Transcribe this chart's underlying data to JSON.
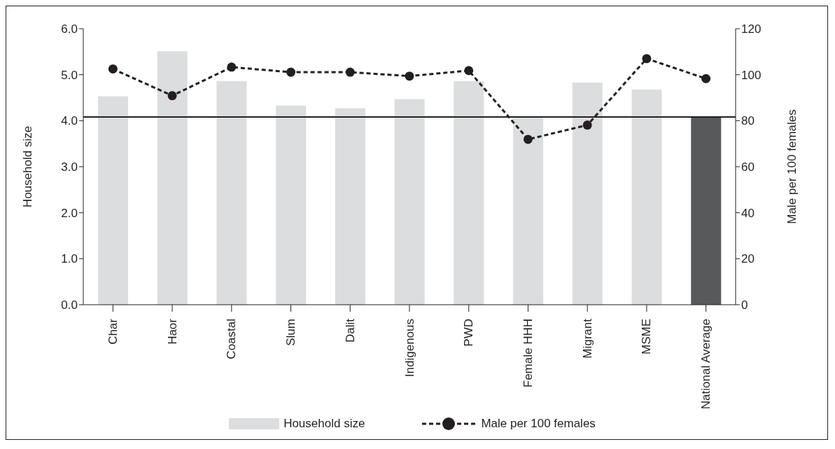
{
  "chart_data": {
    "type": "bar",
    "categories": [
      "Char",
      "Haor",
      "Coastal",
      "Slum",
      "Dalit",
      "Indigenous",
      "PWD",
      "Female HHH",
      "Migrant",
      "MSME",
      "National Average"
    ],
    "series": [
      {
        "name": "Household size",
        "colors": [
          "#dcdddf",
          "#dcdddf",
          "#dcdddf",
          "#dcdddf",
          "#dcdddf",
          "#dcdddf",
          "#dcdddf",
          "#dcdddf",
          "#dcdddf",
          "#dcdddf",
          "#58595b"
        ],
        "color": "#dcdddf",
        "values": [
          4.53,
          5.51,
          4.86,
          4.33,
          4.27,
          4.47,
          4.86,
          4.07,
          4.83,
          4.68,
          4.07
        ]
      },
      {
        "name": "Male per 100 females",
        "type": "line",
        "axis": "y2",
        "color": "#231f20",
        "marker": "circle",
        "line_style": "dashed",
        "values": [
          102.5,
          90.9,
          103.3,
          101.1,
          101.1,
          99.4,
          101.8,
          71.9,
          78.1,
          107.0,
          98.3
        ]
      }
    ],
    "ylabel": "Household size",
    "y2label": "Male per 100 females",
    "ylim": [
      0,
      6
    ],
    "yticks": [
      {
        "value": 0,
        "label": "0.0"
      },
      {
        "value": 1,
        "label": "1.0"
      },
      {
        "value": 2,
        "label": "2.0"
      },
      {
        "value": 3,
        "label": "3.0"
      },
      {
        "value": 4,
        "label": "4.0"
      },
      {
        "value": 5,
        "label": "5.0"
      },
      {
        "value": 6,
        "label": "6.0"
      }
    ],
    "y2lim": [
      0,
      120
    ],
    "y2ticks": [
      0,
      20,
      40,
      60,
      80,
      100,
      120
    ],
    "ref_lines": [
      {
        "axis": "y",
        "value": 4.08,
        "color": "#231f20",
        "line_style": "solid"
      }
    ],
    "grid": false,
    "legend": "bottom"
  }
}
